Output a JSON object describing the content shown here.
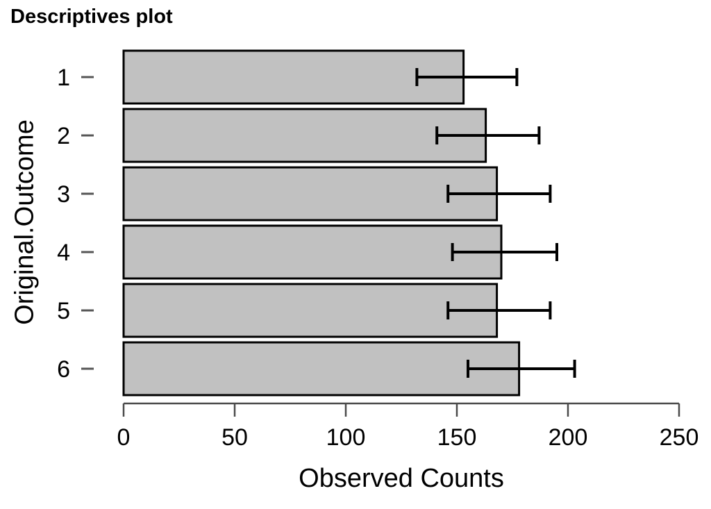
{
  "title": "Descriptives plot",
  "chart_data": {
    "type": "bar",
    "orientation": "horizontal",
    "title": "Descriptives plot",
    "xlabel": "Observed Counts",
    "ylabel": "Original.Outcome",
    "categories": [
      "1",
      "2",
      "3",
      "4",
      "5",
      "6"
    ],
    "values": [
      153,
      163,
      168,
      170,
      168,
      178
    ],
    "error_bars": {
      "lower": [
        132,
        141,
        146,
        148,
        146,
        155
      ],
      "upper": [
        177,
        187,
        192,
        195,
        192,
        203
      ]
    },
    "xticks": [
      0,
      50,
      100,
      150,
      200,
      250
    ],
    "xlim": [
      0,
      250
    ],
    "grid": false,
    "legend": false
  },
  "colors": {
    "bar_fill": "#c1c1c1",
    "bar_stroke": "#000000",
    "error_bar": "#000000",
    "axis_line": "#4a4a4a",
    "y_tick": "#555555",
    "text": "#000000"
  }
}
